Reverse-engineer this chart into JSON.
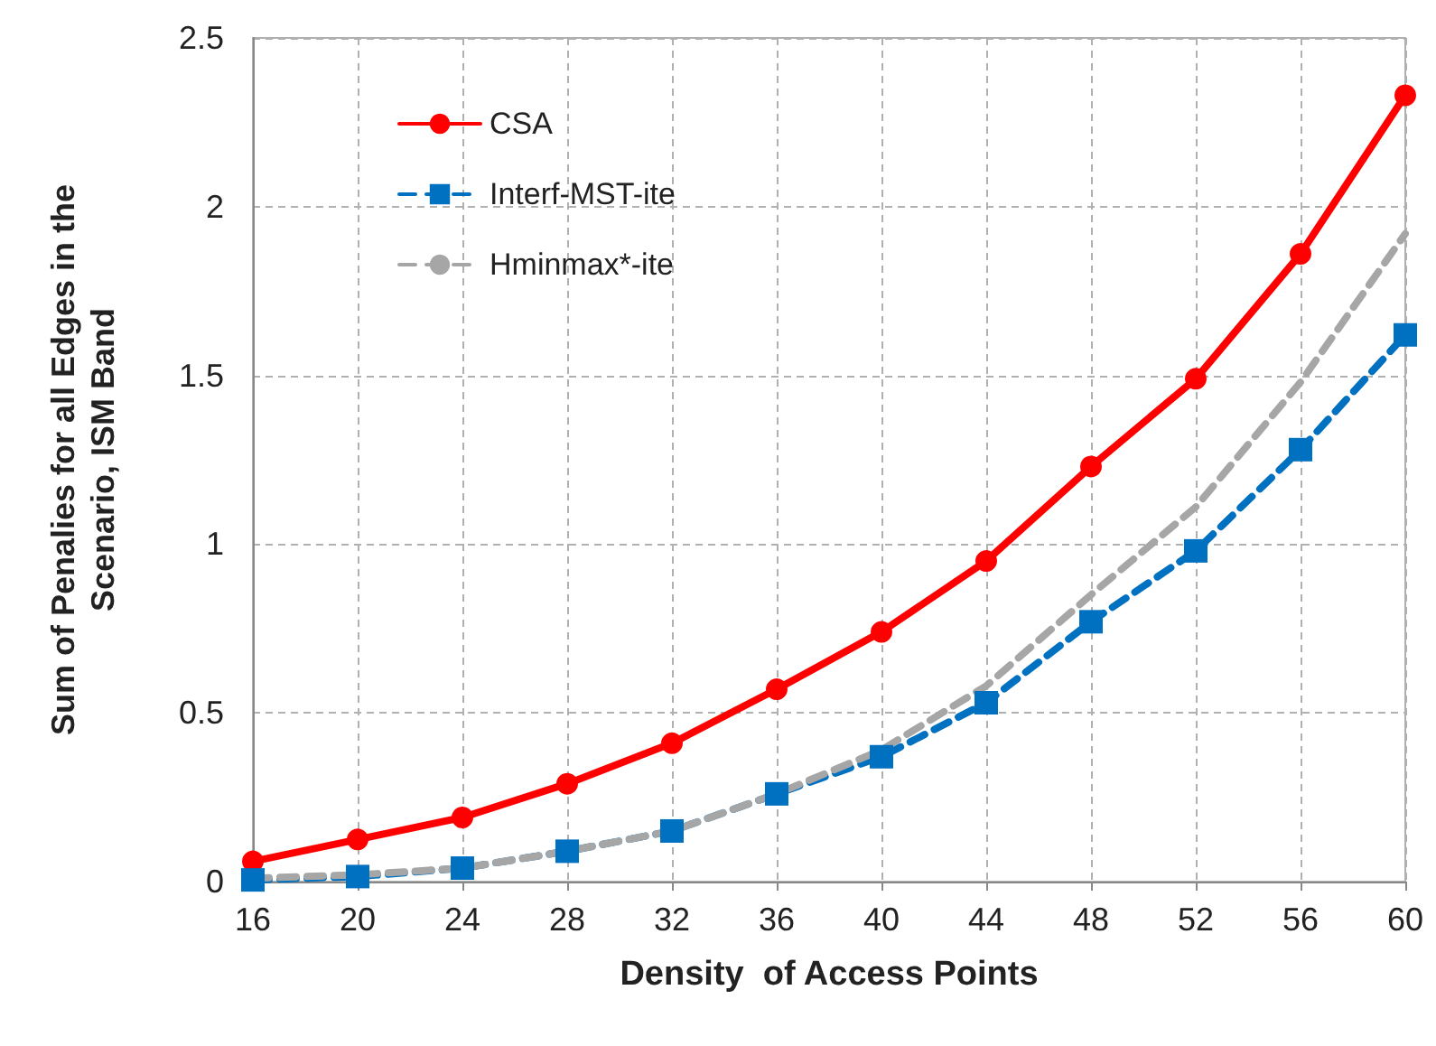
{
  "chart_data": {
    "type": "line",
    "xlabel": "Density  of Access Points",
    "ylabel": "Sum of Penalies for all Edges in the\nScenario, ISM Band",
    "x": [
      16,
      20,
      24,
      28,
      32,
      36,
      40,
      44,
      48,
      52,
      56,
      60
    ],
    "series": [
      {
        "name": "CSA",
        "color": "#ff0000",
        "marker": "circle",
        "line_style": "solid",
        "values": [
          0.06,
          0.125,
          0.19,
          0.29,
          0.41,
          0.57,
          0.74,
          0.95,
          1.23,
          1.49,
          1.86,
          2.33
        ]
      },
      {
        "name": "Interf-MST-ite",
        "color": "#0070c0",
        "marker": "square",
        "line_style": "dashed",
        "values": [
          0.005,
          0.015,
          0.04,
          0.09,
          0.15,
          0.26,
          0.37,
          0.53,
          0.77,
          0.98,
          1.28,
          1.62
        ]
      },
      {
        "name": "Hminmax*-ite",
        "color": "#a6a6a6",
        "marker": "none",
        "line_style": "dashed",
        "values": [
          0.01,
          0.02,
          0.04,
          0.09,
          0.15,
          0.26,
          0.39,
          0.58,
          0.85,
          1.11,
          1.48,
          1.92
        ]
      }
    ],
    "xlim": [
      16,
      60
    ],
    "xticks": [
      16,
      20,
      24,
      28,
      32,
      36,
      40,
      44,
      48,
      52,
      56,
      60
    ],
    "ylim": [
      0,
      2.5
    ],
    "yticks": [
      0,
      0.5,
      1,
      1.5,
      2,
      2.5
    ],
    "grid": true,
    "legend": "top left"
  }
}
